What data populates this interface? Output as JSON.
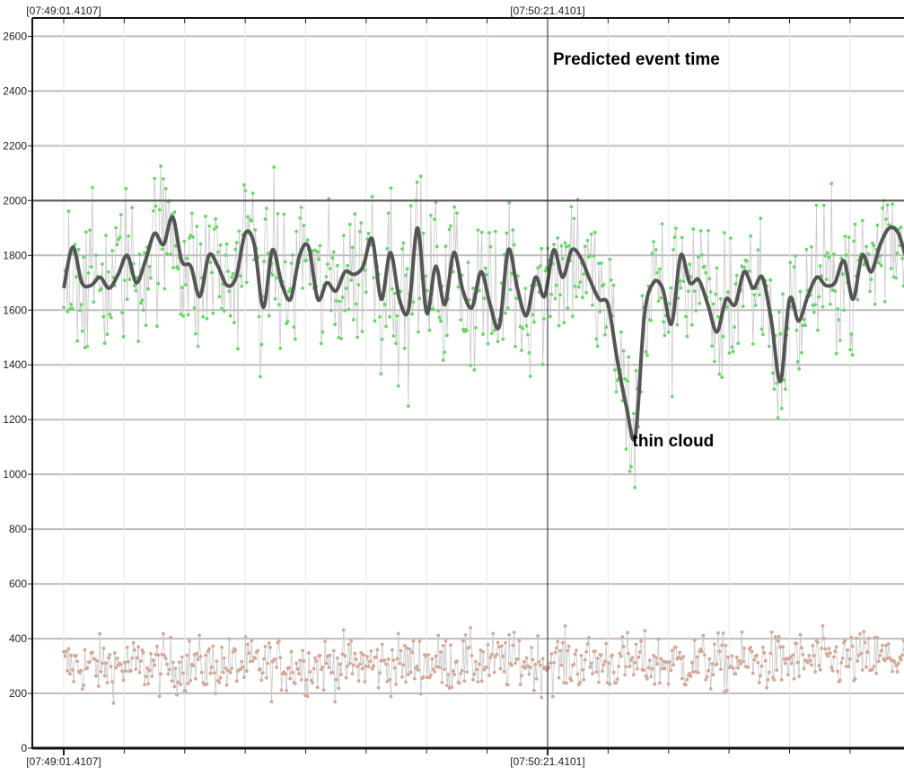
{
  "chart_data": {
    "type": "scatter",
    "title": "",
    "xlabel": "",
    "ylabel": "",
    "ylim": [
      0,
      2667
    ],
    "y_ticks": [
      0,
      200,
      400,
      600,
      800,
      1000,
      1200,
      1400,
      1600,
      1800,
      2000,
      2200,
      2400,
      2600
    ],
    "x_tick_labels": [
      "[07:49:01.4107]",
      "[07:50:21.4101]"
    ],
    "x_range_seconds": [
      0,
      144
    ],
    "x_tick_seconds": [
      0,
      80
    ],
    "grid": true,
    "threshold_line": {
      "value": 2000
    },
    "event_marker": {
      "x_seconds": 80,
      "label": "Predicted event time"
    },
    "annotations": [
      {
        "text": "thin cloud",
        "x_seconds": 97,
        "y": 1130
      }
    ],
    "series": [
      {
        "role": "target-points",
        "color": "#6ad66a",
        "line_color": "#c8c8c8",
        "baseline": [
          [
            0,
            1680
          ],
          [
            1.5,
            1830
          ],
          [
            3,
            1700
          ],
          [
            4.5,
            1690
          ],
          [
            6,
            1720
          ],
          [
            7.5,
            1680
          ],
          [
            9,
            1730
          ],
          [
            10.5,
            1800
          ],
          [
            12,
            1700
          ],
          [
            13.5,
            1780
          ],
          [
            15,
            1880
          ],
          [
            16.5,
            1840
          ],
          [
            18,
            1940
          ],
          [
            19.5,
            1780
          ],
          [
            21,
            1760
          ],
          [
            22.5,
            1650
          ],
          [
            24,
            1800
          ],
          [
            25.5,
            1760
          ],
          [
            27,
            1690
          ],
          [
            28.5,
            1720
          ],
          [
            30,
            1880
          ],
          [
            31.5,
            1840
          ],
          [
            33,
            1610
          ],
          [
            34.5,
            1820
          ],
          [
            36,
            1700
          ],
          [
            37.5,
            1640
          ],
          [
            39,
            1800
          ],
          [
            40.5,
            1830
          ],
          [
            42,
            1640
          ],
          [
            43.5,
            1700
          ],
          [
            45,
            1670
          ],
          [
            46.5,
            1740
          ],
          [
            48,
            1730
          ],
          [
            49.5,
            1760
          ],
          [
            51,
            1860
          ],
          [
            52.5,
            1640
          ],
          [
            54,
            1810
          ],
          [
            55.5,
            1640
          ],
          [
            57,
            1600
          ],
          [
            58.5,
            1900
          ],
          [
            60,
            1590
          ],
          [
            61.5,
            1760
          ],
          [
            63,
            1620
          ],
          [
            64.5,
            1810
          ],
          [
            66,
            1670
          ],
          [
            67.5,
            1610
          ],
          [
            69,
            1740
          ],
          [
            70.5,
            1620
          ],
          [
            72,
            1540
          ],
          [
            73.5,
            1820
          ],
          [
            75,
            1680
          ],
          [
            76.5,
            1580
          ],
          [
            78,
            1720
          ],
          [
            79.5,
            1650
          ],
          [
            81,
            1820
          ],
          [
            82.5,
            1720
          ],
          [
            84,
            1820
          ],
          [
            85.5,
            1790
          ],
          [
            87,
            1710
          ],
          [
            88.5,
            1640
          ],
          [
            90,
            1620
          ],
          [
            91.5,
            1420
          ],
          [
            93,
            1250
          ],
          [
            94.5,
            1140
          ],
          [
            96,
            1580
          ],
          [
            97.5,
            1700
          ],
          [
            99,
            1680
          ],
          [
            100.5,
            1550
          ],
          [
            102,
            1800
          ],
          [
            103.5,
            1700
          ],
          [
            105,
            1710
          ],
          [
            106.5,
            1620
          ],
          [
            108,
            1520
          ],
          [
            109.5,
            1640
          ],
          [
            111,
            1620
          ],
          [
            112.5,
            1740
          ],
          [
            114,
            1680
          ],
          [
            115.5,
            1720
          ],
          [
            117,
            1560
          ],
          [
            118.5,
            1340
          ],
          [
            120,
            1640
          ],
          [
            121.5,
            1560
          ],
          [
            123,
            1650
          ],
          [
            124.5,
            1720
          ],
          [
            126,
            1690
          ],
          [
            127.5,
            1700
          ],
          [
            129,
            1780
          ],
          [
            130.5,
            1640
          ],
          [
            132,
            1800
          ],
          [
            133.5,
            1740
          ],
          [
            135,
            1840
          ],
          [
            136.5,
            1900
          ],
          [
            138,
            1880
          ],
          [
            139.5,
            1780
          ],
          [
            141,
            1740
          ],
          [
            142.5,
            1710
          ],
          [
            144,
            1690
          ]
        ],
        "spread": 260
      },
      {
        "role": "comparison-points",
        "color": "#d4a896",
        "line_color": "#c8c8c8",
        "baseline": [
          [
            0,
            300
          ],
          [
            36,
            300
          ],
          [
            72,
            315
          ],
          [
            108,
            310
          ],
          [
            144,
            330
          ]
        ],
        "spread": 95
      },
      {
        "role": "smoothed-light-curve",
        "color": "#555555",
        "values": [
          [
            0,
            1680
          ],
          [
            1.5,
            1830
          ],
          [
            3,
            1700
          ],
          [
            4.5,
            1690
          ],
          [
            6,
            1720
          ],
          [
            7.5,
            1680
          ],
          [
            9,
            1730
          ],
          [
            10.5,
            1800
          ],
          [
            12,
            1700
          ],
          [
            13.5,
            1780
          ],
          [
            15,
            1880
          ],
          [
            16.5,
            1840
          ],
          [
            18,
            1940
          ],
          [
            19.5,
            1780
          ],
          [
            21,
            1760
          ],
          [
            22.5,
            1650
          ],
          [
            24,
            1800
          ],
          [
            25.5,
            1760
          ],
          [
            27,
            1690
          ],
          [
            28.5,
            1720
          ],
          [
            30,
            1880
          ],
          [
            31.5,
            1840
          ],
          [
            33,
            1610
          ],
          [
            34.5,
            1820
          ],
          [
            36,
            1700
          ],
          [
            37.5,
            1640
          ],
          [
            39,
            1800
          ],
          [
            40.5,
            1830
          ],
          [
            42,
            1640
          ],
          [
            43.5,
            1700
          ],
          [
            45,
            1670
          ],
          [
            46.5,
            1740
          ],
          [
            48,
            1730
          ],
          [
            49.5,
            1760
          ],
          [
            51,
            1860
          ],
          [
            52.5,
            1640
          ],
          [
            54,
            1810
          ],
          [
            55.5,
            1640
          ],
          [
            57,
            1600
          ],
          [
            58.5,
            1900
          ],
          [
            60,
            1590
          ],
          [
            61.5,
            1760
          ],
          [
            63,
            1620
          ],
          [
            64.5,
            1810
          ],
          [
            66,
            1670
          ],
          [
            67.5,
            1610
          ],
          [
            69,
            1740
          ],
          [
            70.5,
            1620
          ],
          [
            72,
            1540
          ],
          [
            73.5,
            1820
          ],
          [
            75,
            1680
          ],
          [
            76.5,
            1580
          ],
          [
            78,
            1720
          ],
          [
            79.5,
            1650
          ],
          [
            81,
            1820
          ],
          [
            82.5,
            1720
          ],
          [
            84,
            1820
          ],
          [
            85.5,
            1790
          ],
          [
            87,
            1710
          ],
          [
            88.5,
            1640
          ],
          [
            90,
            1620
          ],
          [
            91.5,
            1420
          ],
          [
            93,
            1250
          ],
          [
            94.5,
            1140
          ],
          [
            96,
            1580
          ],
          [
            97.5,
            1700
          ],
          [
            99,
            1680
          ],
          [
            100.5,
            1550
          ],
          [
            102,
            1800
          ],
          [
            103.5,
            1700
          ],
          [
            105,
            1710
          ],
          [
            106.5,
            1620
          ],
          [
            108,
            1520
          ],
          [
            109.5,
            1640
          ],
          [
            111,
            1620
          ],
          [
            112.5,
            1740
          ],
          [
            114,
            1680
          ],
          [
            115.5,
            1720
          ],
          [
            117,
            1560
          ],
          [
            118.5,
            1340
          ],
          [
            120,
            1640
          ],
          [
            121.5,
            1560
          ],
          [
            123,
            1650
          ],
          [
            124.5,
            1720
          ],
          [
            126,
            1690
          ],
          [
            127.5,
            1700
          ],
          [
            129,
            1780
          ],
          [
            130.5,
            1640
          ],
          [
            132,
            1800
          ],
          [
            133.5,
            1740
          ],
          [
            135,
            1840
          ],
          [
            136.5,
            1900
          ],
          [
            138,
            1880
          ],
          [
            139.5,
            1780
          ],
          [
            141,
            1740
          ],
          [
            142.5,
            1710
          ],
          [
            144,
            1690
          ]
        ]
      }
    ]
  }
}
